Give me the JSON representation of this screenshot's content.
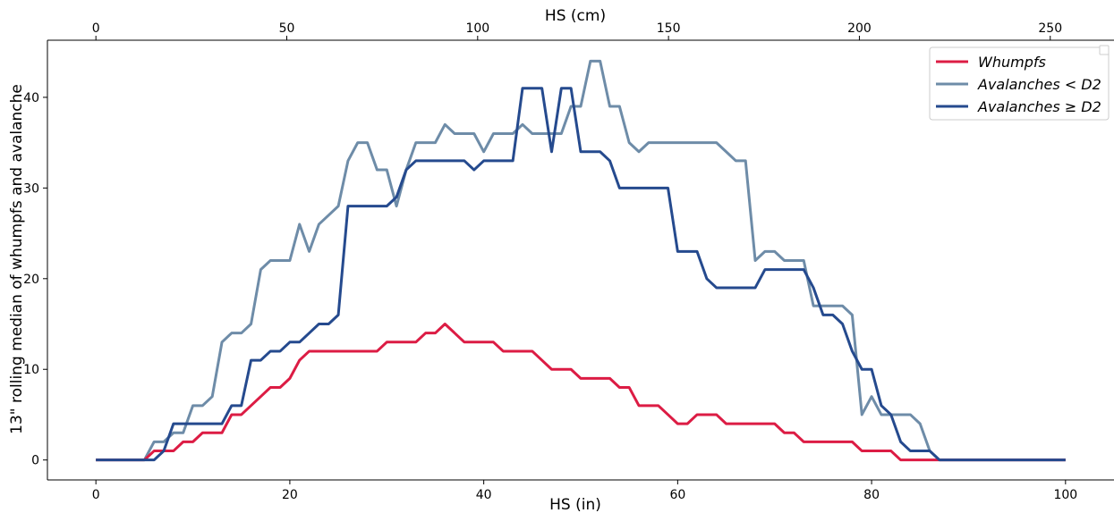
{
  "chart_data": {
    "type": "line",
    "xlabel": "HS (in)",
    "ylabel": "13\" rolling median of whumpfs and avalanche",
    "secondary_xlabel": "HS (cm)",
    "xlim": [
      -5,
      105
    ],
    "ylim": [
      -2.2,
      46.3
    ],
    "x_ticks": [
      0,
      20,
      40,
      60,
      80,
      100
    ],
    "y_ticks": [
      0,
      10,
      20,
      30,
      40
    ],
    "secondary_x_ticks_cm": [
      0,
      50,
      100,
      150,
      200,
      250
    ],
    "grid": false,
    "legend_position": "top-right",
    "series": [
      {
        "name": "Whumpfs",
        "color": "#dc1c44",
        "x": [
          0,
          1,
          2,
          3,
          4,
          5,
          6,
          7,
          8,
          9,
          10,
          11,
          12,
          13,
          14,
          15,
          16,
          17,
          18,
          19,
          20,
          21,
          22,
          23,
          24,
          25,
          26,
          27,
          28,
          29,
          30,
          31,
          32,
          33,
          34,
          35,
          36,
          37,
          38,
          39,
          40,
          41,
          42,
          43,
          44,
          45,
          46,
          47,
          48,
          49,
          50,
          51,
          52,
          53,
          54,
          55,
          56,
          57,
          58,
          59,
          60,
          61,
          62,
          63,
          64,
          65,
          66,
          67,
          68,
          69,
          70,
          71,
          72,
          73,
          74,
          75,
          76,
          77,
          78,
          79,
          80,
          81,
          82,
          83,
          84,
          85,
          86,
          87,
          88,
          89,
          90,
          91,
          92,
          93,
          94,
          95,
          96,
          97,
          98,
          99,
          100
        ],
        "values": [
          0,
          0,
          0,
          0,
          0,
          0,
          1,
          1,
          1,
          2,
          2,
          3,
          3,
          3,
          5,
          5,
          6,
          7,
          8,
          8,
          9,
          11,
          12,
          12,
          12,
          12,
          12,
          12,
          12,
          12,
          13,
          13,
          13,
          13,
          14,
          14,
          15,
          14,
          13,
          13,
          13,
          13,
          12,
          12,
          12,
          12,
          11,
          10,
          10,
          10,
          9,
          9,
          9,
          9,
          8,
          8,
          6,
          6,
          6,
          5,
          4,
          4,
          5,
          5,
          5,
          4,
          4,
          4,
          4,
          4,
          4,
          3,
          3,
          2,
          2,
          2,
          2,
          2,
          2,
          1,
          1,
          1,
          1,
          0,
          0,
          0,
          0,
          0,
          0,
          0,
          0,
          0,
          0,
          0,
          0,
          0,
          0,
          0,
          0,
          0,
          0
        ]
      },
      {
        "name": "Avalanches < D2",
        "color": "#6e8ca8",
        "x": [
          0,
          1,
          2,
          3,
          4,
          5,
          6,
          7,
          8,
          9,
          10,
          11,
          12,
          13,
          14,
          15,
          16,
          17,
          18,
          19,
          20,
          21,
          22,
          23,
          24,
          25,
          26,
          27,
          28,
          29,
          30,
          31,
          32,
          33,
          34,
          35,
          36,
          37,
          38,
          39,
          40,
          41,
          42,
          43,
          44,
          45,
          46,
          47,
          48,
          49,
          50,
          51,
          52,
          53,
          54,
          55,
          56,
          57,
          58,
          59,
          60,
          61,
          62,
          63,
          64,
          65,
          66,
          67,
          68,
          69,
          70,
          71,
          72,
          73,
          74,
          75,
          76,
          77,
          78,
          79,
          80,
          81,
          82,
          83,
          84,
          85,
          86,
          87,
          88,
          89,
          90,
          91,
          92,
          93,
          94,
          95,
          96,
          97,
          98,
          99,
          100
        ],
        "values": [
          0,
          0,
          0,
          0,
          0,
          0,
          2,
          2,
          3,
          3,
          6,
          6,
          7,
          13,
          14,
          14,
          15,
          21,
          22,
          22,
          22,
          26,
          23,
          26,
          27,
          28,
          33,
          35,
          35,
          32,
          32,
          28,
          32,
          35,
          35,
          35,
          37,
          36,
          36,
          36,
          34,
          36,
          36,
          36,
          37,
          36,
          36,
          36,
          36,
          39,
          39,
          44,
          44,
          39,
          39,
          35,
          34,
          35,
          35,
          35,
          35,
          35,
          35,
          35,
          35,
          34,
          33,
          33,
          22,
          23,
          23,
          22,
          22,
          22,
          17,
          17,
          17,
          17,
          16,
          5,
          7,
          5,
          5,
          5,
          5,
          4,
          1,
          0,
          0,
          0,
          0,
          0,
          0,
          0,
          0,
          0,
          0,
          0,
          0,
          0,
          0
        ]
      },
      {
        "name": "Avalanches ≥ D2",
        "color": "#254a8e",
        "x": [
          0,
          1,
          2,
          3,
          4,
          5,
          6,
          7,
          8,
          9,
          10,
          11,
          12,
          13,
          14,
          15,
          16,
          17,
          18,
          19,
          20,
          21,
          22,
          23,
          24,
          25,
          26,
          27,
          28,
          29,
          30,
          31,
          32,
          33,
          34,
          35,
          36,
          37,
          38,
          39,
          40,
          41,
          42,
          43,
          44,
          45,
          46,
          47,
          48,
          49,
          50,
          51,
          52,
          53,
          54,
          55,
          56,
          57,
          58,
          59,
          60,
          61,
          62,
          63,
          64,
          65,
          66,
          67,
          68,
          69,
          70,
          71,
          72,
          73,
          74,
          75,
          76,
          77,
          78,
          79,
          80,
          81,
          82,
          83,
          84,
          85,
          86,
          87,
          88,
          89,
          90,
          91,
          92,
          93,
          94,
          95,
          96,
          97,
          98,
          99,
          100
        ],
        "values": [
          0,
          0,
          0,
          0,
          0,
          0,
          0,
          1,
          4,
          4,
          4,
          4,
          4,
          4,
          6,
          6,
          11,
          11,
          12,
          12,
          13,
          13,
          14,
          15,
          15,
          16,
          28,
          28,
          28,
          28,
          28,
          29,
          32,
          33,
          33,
          33,
          33,
          33,
          33,
          32,
          33,
          33,
          33,
          33,
          41,
          41,
          41,
          34,
          41,
          41,
          34,
          34,
          34,
          33,
          30,
          30,
          30,
          30,
          30,
          30,
          23,
          23,
          23,
          20,
          19,
          19,
          19,
          19,
          19,
          21,
          21,
          21,
          21,
          21,
          19,
          16,
          16,
          15,
          12,
          10,
          10,
          6,
          5,
          2,
          1,
          1,
          1,
          0,
          0,
          0,
          0,
          0,
          0,
          0,
          0,
          0,
          0,
          0,
          0,
          0,
          0
        ]
      }
    ]
  }
}
